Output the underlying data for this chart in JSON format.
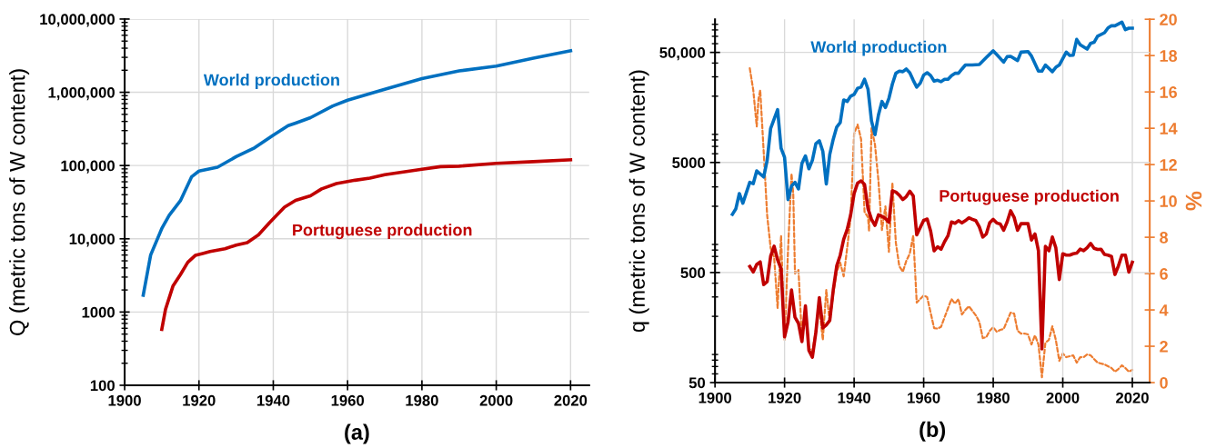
{
  "chart_data": [
    {
      "type": "line",
      "xlabel": "(a)",
      "ylabel": "Q (metric tons of W content)",
      "log": "y",
      "grid": true,
      "legend": false,
      "line_style": "solid",
      "marker": "none",
      "xlim": [
        1900,
        2025
      ],
      "xticks": [
        1900,
        1920,
        1940,
        1960,
        1980,
        2000,
        2020
      ],
      "ylim": [
        100,
        10000000
      ],
      "yticks": [
        100,
        1000,
        {
          "value": 10000,
          "label": "10,000"
        },
        {
          "value": 100000,
          "label": "100,000"
        },
        {
          "value": 1000000,
          "label": "1,000,000"
        },
        {
          "value": 10000000,
          "label": "10,000,000"
        }
      ],
      "series": [
        {
          "name": "World production",
          "color": "#0070c0",
          "x": [
            1905,
            1907,
            1910,
            1912,
            1915,
            1918,
            1920,
            1925,
            1930,
            1935,
            1940,
            1944,
            1946,
            1950,
            1956,
            1960,
            1970,
            1980,
            1990,
            2000,
            2010,
            2020
          ],
          "values": [
            1700,
            6000,
            13800,
            21000,
            33000,
            70000,
            84000,
            95000,
            132000,
            175000,
            260000,
            350000,
            380000,
            450000,
            650000,
            780000,
            1100000,
            1540000,
            1960000,
            2280000,
            2920000,
            3700000
          ]
        },
        {
          "name": "Portuguese production",
          "color": "#c00000",
          "x": [
            1910,
            1911,
            1913,
            1915,
            1917,
            1919,
            1921,
            1923,
            1927,
            1930,
            1933,
            1936,
            1939,
            1943,
            1946,
            1950,
            1953,
            1957,
            1962,
            1966,
            1970,
            1975,
            1980,
            1985,
            1990,
            2000,
            2010,
            2020
          ],
          "values": [
            580,
            1090,
            2260,
            3240,
            4770,
            5930,
            6300,
            6700,
            7300,
            8200,
            8850,
            11300,
            16600,
            27000,
            33400,
            38600,
            48000,
            56700,
            63000,
            67300,
            75000,
            81600,
            89000,
            96700,
            98000,
            107000,
            113000,
            120000
          ]
        }
      ]
    },
    {
      "type": "line",
      "xlabel": "(b)",
      "ylabel": "q (metric tons of W content)",
      "y2label": "%",
      "log": "y",
      "grid": true,
      "legend": false,
      "marker": "none",
      "xlim": [
        1900,
        2025
      ],
      "xticks": [
        1900,
        1920,
        1940,
        1960,
        1980,
        2000,
        2020
      ],
      "ylim": [
        50,
        100000
      ],
      "yticks": [
        50,
        500,
        5000,
        {
          "value": 50000,
          "label": "50,000"
        }
      ],
      "y2lim": [
        0,
        20
      ],
      "y2ticks": [
        0,
        2,
        4,
        6,
        8,
        10,
        12,
        14,
        16,
        18,
        20
      ],
      "series": [
        {
          "name": "World production",
          "color": "#0070c0",
          "line_style": "solid",
          "x": [
            1905,
            1906,
            1907,
            1908,
            1910,
            1911,
            1912,
            1914,
            1915,
            1916,
            1918,
            1919,
            1920,
            1921,
            1922,
            1923,
            1924,
            1925,
            1926,
            1927,
            1928,
            1929,
            1930,
            1931,
            1932,
            1933,
            1934,
            1935,
            1936,
            1937,
            1938,
            1939,
            1940,
            1941,
            1942,
            1943,
            1944,
            1945,
            1946,
            1947,
            1948,
            1949,
            1950,
            1951,
            1952,
            1953,
            1954,
            1955,
            1956,
            1957,
            1958,
            1959,
            1960,
            1961,
            1962,
            1963,
            1964,
            1965,
            1966,
            1967,
            1968,
            1969,
            1970,
            1971,
            1972,
            1973,
            1974,
            1976,
            1978,
            1980,
            1981,
            1983,
            1984,
            1985,
            1987,
            1988,
            1990,
            1991,
            1993,
            1994,
            1995,
            1997,
            1998,
            1999,
            2001,
            2002,
            2003,
            2004,
            2005,
            2007,
            2008,
            2009,
            2010,
            2012,
            2013,
            2014,
            2015,
            2017,
            2018,
            2019,
            2020
          ],
          "values": [
            1690,
            1900,
            2610,
            2130,
            3300,
            3210,
            4190,
            3690,
            5230,
            10200,
            15100,
            6730,
            5570,
            2300,
            3050,
            3300,
            2870,
            4910,
            5740,
            4380,
            5230,
            7400,
            7880,
            6320,
            3190,
            5930,
            8130,
            10500,
            11500,
            18500,
            17900,
            20000,
            20800,
            23600,
            24200,
            28500,
            23100,
            11900,
            8950,
            13500,
            17900,
            15800,
            19100,
            25800,
            32300,
            33800,
            33400,
            35300,
            32700,
            27900,
            24200,
            26200,
            31100,
            32700,
            30800,
            27400,
            27900,
            27100,
            28500,
            28500,
            30800,
            32300,
            32300,
            35300,
            38400,
            38400,
            38400,
            38800,
            44900,
            51700,
            47800,
            40800,
            45700,
            46000,
            42200,
            50300,
            50900,
            46300,
            33800,
            33800,
            38400,
            33400,
            36600,
            38400,
            50300,
            46900,
            47200,
            65600,
            58600,
            53600,
            60400,
            61700,
            70000,
            75500,
            83400,
            87300,
            87300,
            94200,
            80400,
            83000,
            83000
          ]
        },
        {
          "name": "Portuguese production",
          "color": "#c00000",
          "line_style": "solid",
          "x": [
            1910,
            1911,
            1912,
            1913,
            1914,
            1915,
            1916,
            1917,
            1918,
            1919,
            1920,
            1921,
            1922,
            1923,
            1924,
            1925,
            1926,
            1927,
            1928,
            1929,
            1930,
            1931,
            1932,
            1933,
            1934,
            1935,
            1936,
            1937,
            1938,
            1939,
            1940,
            1941,
            1942,
            1943,
            1944,
            1945,
            1946,
            1947,
            1948,
            1949,
            1950,
            1951,
            1952,
            1953,
            1954,
            1955,
            1956,
            1957,
            1958,
            1960,
            1961,
            1962,
            1963,
            1964,
            1965,
            1966,
            1967,
            1968,
            1969,
            1970,
            1971,
            1972,
            1973,
            1974,
            1975,
            1976,
            1977,
            1978,
            1979,
            1980,
            1981,
            1982,
            1983,
            1984,
            1985,
            1986,
            1987,
            1988,
            1989,
            1990,
            1991,
            1992,
            1993,
            1994,
            1995,
            1996,
            1997,
            1998,
            1999,
            2000,
            2001,
            2002,
            2003,
            2004,
            2005,
            2006,
            2007,
            2008,
            2009,
            2010,
            2011,
            2012,
            2013,
            2014,
            2015,
            2016,
            2017,
            2018,
            2019,
            2020
          ],
          "values": [
            568,
            506,
            593,
            624,
            388,
            414,
            704,
            867,
            652,
            540,
            130,
            178,
            347,
            196,
            173,
            118,
            249,
            98,
            85,
            143,
            296,
            157,
            167,
            184,
            347,
            574,
            717,
            1000,
            1230,
            1670,
            2610,
            3250,
            3400,
            3150,
            1900,
            1520,
            1340,
            1670,
            1620,
            1550,
            1430,
            2770,
            2690,
            2520,
            2300,
            2450,
            2740,
            2480,
            1100,
            1490,
            1530,
            1190,
            788,
            857,
            815,
            953,
            1080,
            1440,
            1400,
            1480,
            1410,
            1480,
            1570,
            1520,
            1480,
            1300,
            1050,
            1120,
            1420,
            1520,
            1410,
            1380,
            1210,
            1440,
            1820,
            1590,
            1210,
            1390,
            1390,
            1390,
            987,
            1120,
            788,
            101,
            865,
            788,
            1050,
            839,
            432,
            740,
            720,
            720,
            740,
            750,
            815,
            788,
            839,
            920,
            830,
            810,
            815,
            730,
            720,
            700,
            480,
            575,
            720,
            720,
            505,
            620
          ]
        },
        {
          "color": "#ed7d31",
          "axis": "y2",
          "line_style": "dashed",
          "x": [
            1910,
            1911,
            1912,
            1912.5,
            1913,
            1914,
            1915,
            1916,
            1917,
            1918,
            1919,
            1920,
            1921,
            1922,
            1922.5,
            1923,
            1924,
            1925,
            1926,
            1927,
            1928,
            1929,
            1930,
            1931,
            1932,
            1933,
            1934,
            1935,
            1936,
            1937,
            1938,
            1939,
            1940,
            1941,
            1942,
            1943,
            1944,
            1944.3,
            1945,
            1946,
            1947,
            1948,
            1949,
            1950,
            1951,
            1952,
            1953,
            1954,
            1955,
            1956,
            1957,
            1958,
            1960,
            1961,
            1963,
            1964,
            1965,
            1967,
            1968,
            1969,
            1970,
            1971,
            1972,
            1973,
            1975,
            1976,
            1977,
            1978,
            1979,
            1980,
            1981,
            1982,
            1983,
            1984,
            1985,
            1986,
            1987,
            1988,
            1989,
            1990,
            1991,
            1992,
            1993,
            1994,
            1995,
            1996,
            1997,
            1998,
            1999,
            2000,
            2001,
            2002,
            2003,
            2004,
            2005,
            2006,
            2007,
            2008,
            2009,
            2010,
            2012,
            2014,
            2015,
            2016,
            2017,
            2018,
            2019,
            2020
          ],
          "values": [
            17.3,
            16.1,
            14.1,
            15.6,
            16.1,
            12.7,
            9.2,
            7.4,
            6.9,
            4.1,
            8.1,
            2.35,
            7.3,
            11.5,
            10.4,
            6.0,
            6.2,
            2.4,
            4.2,
            1.9,
            1.7,
            2.9,
            4.1,
            2.35,
            5.1,
            3.3,
            4.9,
            6.1,
            6.6,
            5.85,
            7.4,
            9.1,
            13.7,
            14.2,
            13.4,
            9.4,
            9.1,
            8.35,
            14.0,
            13.1,
            11.1,
            8.4,
            9.7,
            7.2,
            11.0,
            7.7,
            6.4,
            6.1,
            6.7,
            7.1,
            8.1,
            4.4,
            4.8,
            4.7,
            3.0,
            2.97,
            3.07,
            4.1,
            4.6,
            4.35,
            4.6,
            3.75,
            4.0,
            4.2,
            3.7,
            3.35,
            2.45,
            2.5,
            2.85,
            3.05,
            2.8,
            2.9,
            2.95,
            3.4,
            3.85,
            3.8,
            2.85,
            2.7,
            2.7,
            2.65,
            2.1,
            2.6,
            2.1,
            0.3,
            2.2,
            2.35,
            3.1,
            2.35,
            1.2,
            1.6,
            1.4,
            1.45,
            1.5,
            1.1,
            1.4,
            1.4,
            1.55,
            1.5,
            1.3,
            1.1,
            1.0,
            0.8,
            0.6,
            0.75,
            0.95,
            0.8,
            0.6,
            0.7
          ]
        }
      ]
    }
  ]
}
